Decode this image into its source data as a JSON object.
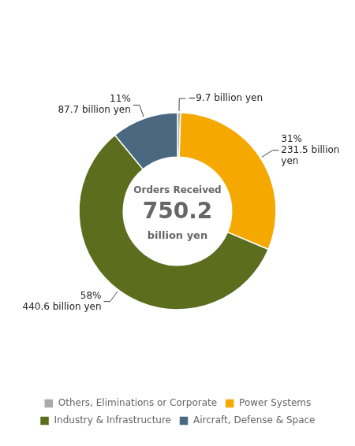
{
  "chart_data": {
    "type": "doughnut",
    "categories": [
      "Others, Eliminations or Corporate",
      "Power Systems",
      "Industry & Infrastructure",
      "Aircraft, Defense & Space"
    ],
    "values": [
      0.5,
      31,
      58,
      11
    ],
    "value_labels": [
      "−9.7 billion yen",
      "31%\n231.5 billion\nyen",
      "58%\n440.6 billion yen",
      "11%\n87.7 billion yen"
    ],
    "colors": [
      "#AAAAAA",
      "#F5A800",
      "#5C6E1E",
      "#4A6880"
    ],
    "data_labels": true,
    "annotations": [
      "Orders Received",
      "750.2",
      "billion yen"
    ],
    "legend": "bottom"
  }
}
